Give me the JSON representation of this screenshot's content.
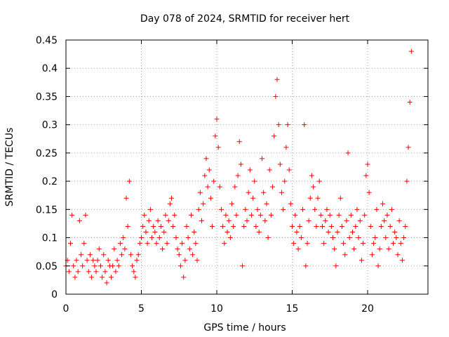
{
  "chart_data": {
    "type": "scatter",
    "title": "Day 078 of 2024, SRMTID for receiver hert",
    "xlabel": "GPS time / hours",
    "ylabel": "SRMTID / TECUs",
    "xlim": [
      0,
      24
    ],
    "ylim": [
      0,
      0.45
    ],
    "xticks": [
      0,
      5,
      10,
      15,
      20
    ],
    "xtick_labels": [
      "0",
      "5",
      "10",
      "15",
      "20"
    ],
    "yticks": [
      0,
      0.05,
      0.1,
      0.15,
      0.2,
      0.25,
      0.3,
      0.35,
      0.4,
      0.45
    ],
    "ytick_labels": [
      "0",
      "0.05",
      "0.1",
      "0.15",
      "0.2",
      "0.25",
      "0.3",
      "0.35",
      "0.4",
      "0.45"
    ],
    "grid": true,
    "marker": "+",
    "color": "#ff0000",
    "series": [
      {
        "name": "SRMTID",
        "points": [
          [
            0.0,
            0.05
          ],
          [
            0.1,
            0.06
          ],
          [
            0.2,
            0.04
          ],
          [
            0.3,
            0.09
          ],
          [
            0.4,
            0.14
          ],
          [
            0.5,
            0.05
          ],
          [
            0.6,
            0.03
          ],
          [
            0.7,
            0.06
          ],
          [
            0.8,
            0.04
          ],
          [
            0.9,
            0.13
          ],
          [
            1.0,
            0.07
          ],
          [
            1.1,
            0.05
          ],
          [
            1.2,
            0.09
          ],
          [
            1.3,
            0.14
          ],
          [
            1.4,
            0.06
          ],
          [
            1.5,
            0.04
          ],
          [
            1.6,
            0.07
          ],
          [
            1.7,
            0.03
          ],
          [
            1.8,
            0.06
          ],
          [
            1.9,
            0.05
          ],
          [
            2.0,
            0.04
          ],
          [
            2.1,
            0.06
          ],
          [
            2.2,
            0.08
          ],
          [
            2.3,
            0.05
          ],
          [
            2.4,
            0.03
          ],
          [
            2.5,
            0.07
          ],
          [
            2.6,
            0.04
          ],
          [
            2.7,
            0.02
          ],
          [
            2.8,
            0.06
          ],
          [
            2.9,
            0.05
          ],
          [
            3.0,
            0.03
          ],
          [
            3.1,
            0.05
          ],
          [
            3.2,
            0.08
          ],
          [
            3.3,
            0.04
          ],
          [
            3.4,
            0.06
          ],
          [
            3.5,
            0.05
          ],
          [
            3.6,
            0.09
          ],
          [
            3.7,
            0.07
          ],
          [
            3.8,
            0.1
          ],
          [
            3.9,
            0.08
          ],
          [
            4.0,
            0.17
          ],
          [
            4.1,
            0.12
          ],
          [
            4.2,
            0.2
          ],
          [
            4.3,
            0.07
          ],
          [
            4.4,
            0.05
          ],
          [
            4.5,
            0.04
          ],
          [
            4.6,
            0.03
          ],
          [
            4.7,
            0.06
          ],
          [
            4.8,
            0.07
          ],
          [
            4.9,
            0.09
          ],
          [
            5.0,
            0.1
          ],
          [
            5.1,
            0.12
          ],
          [
            5.2,
            0.14
          ],
          [
            5.3,
            0.11
          ],
          [
            5.4,
            0.09
          ],
          [
            5.5,
            0.13
          ],
          [
            5.6,
            0.15
          ],
          [
            5.7,
            0.1
          ],
          [
            5.8,
            0.12
          ],
          [
            5.9,
            0.11
          ],
          [
            6.0,
            0.09
          ],
          [
            6.1,
            0.13
          ],
          [
            6.2,
            0.1
          ],
          [
            6.3,
            0.12
          ],
          [
            6.4,
            0.08
          ],
          [
            6.5,
            0.11
          ],
          [
            6.6,
            0.14
          ],
          [
            6.7,
            0.09
          ],
          [
            6.8,
            0.13
          ],
          [
            6.9,
            0.16
          ],
          [
            7.0,
            0.17
          ],
          [
            7.1,
            0.12
          ],
          [
            7.2,
            0.14
          ],
          [
            7.3,
            0.1
          ],
          [
            7.4,
            0.08
          ],
          [
            7.5,
            0.07
          ],
          [
            7.6,
            0.05
          ],
          [
            7.7,
            0.09
          ],
          [
            7.8,
            0.03
          ],
          [
            7.9,
            0.06
          ],
          [
            8.0,
            0.12
          ],
          [
            8.1,
            0.1
          ],
          [
            8.2,
            0.08
          ],
          [
            8.3,
            0.14
          ],
          [
            8.4,
            0.07
          ],
          [
            8.5,
            0.11
          ],
          [
            8.6,
            0.09
          ],
          [
            8.7,
            0.06
          ],
          [
            8.8,
            0.15
          ],
          [
            8.9,
            0.18
          ],
          [
            9.0,
            0.13
          ],
          [
            9.1,
            0.16
          ],
          [
            9.2,
            0.21
          ],
          [
            9.3,
            0.24
          ],
          [
            9.4,
            0.19
          ],
          [
            9.5,
            0.22
          ],
          [
            9.6,
            0.17
          ],
          [
            9.7,
            0.12
          ],
          [
            9.8,
            0.2
          ],
          [
            9.9,
            0.28
          ],
          [
            10.0,
            0.31
          ],
          [
            10.1,
            0.26
          ],
          [
            10.2,
            0.19
          ],
          [
            10.3,
            0.15
          ],
          [
            10.4,
            0.12
          ],
          [
            10.5,
            0.09
          ],
          [
            10.6,
            0.14
          ],
          [
            10.7,
            0.11
          ],
          [
            10.8,
            0.13
          ],
          [
            10.9,
            0.1
          ],
          [
            11.0,
            0.16
          ],
          [
            11.1,
            0.12
          ],
          [
            11.2,
            0.19
          ],
          [
            11.3,
            0.14
          ],
          [
            11.4,
            0.21
          ],
          [
            11.5,
            0.27
          ],
          [
            11.6,
            0.23
          ],
          [
            11.7,
            0.05
          ],
          [
            11.8,
            0.12
          ],
          [
            11.9,
            0.15
          ],
          [
            12.0,
            0.13
          ],
          [
            12.1,
            0.18
          ],
          [
            12.2,
            0.22
          ],
          [
            12.3,
            0.14
          ],
          [
            12.4,
            0.17
          ],
          [
            12.5,
            0.2
          ],
          [
            12.6,
            0.12
          ],
          [
            12.7,
            0.15
          ],
          [
            12.8,
            0.11
          ],
          [
            12.9,
            0.14
          ],
          [
            13.0,
            0.24
          ],
          [
            13.1,
            0.18
          ],
          [
            13.2,
            0.13
          ],
          [
            13.3,
            0.16
          ],
          [
            13.4,
            0.1
          ],
          [
            13.5,
            0.22
          ],
          [
            13.6,
            0.14
          ],
          [
            13.7,
            0.19
          ],
          [
            13.8,
            0.28
          ],
          [
            13.9,
            0.35
          ],
          [
            14.0,
            0.38
          ],
          [
            14.1,
            0.3
          ],
          [
            14.2,
            0.23
          ],
          [
            14.3,
            0.18
          ],
          [
            14.4,
            0.15
          ],
          [
            14.5,
            0.2
          ],
          [
            14.6,
            0.26
          ],
          [
            14.7,
            0.3
          ],
          [
            14.8,
            0.22
          ],
          [
            14.9,
            0.16
          ],
          [
            15.0,
            0.12
          ],
          [
            15.1,
            0.09
          ],
          [
            15.2,
            0.14
          ],
          [
            15.3,
            0.11
          ],
          [
            15.4,
            0.08
          ],
          [
            15.5,
            0.12
          ],
          [
            15.6,
            0.1
          ],
          [
            15.7,
            0.15
          ],
          [
            15.8,
            0.3
          ],
          [
            15.9,
            0.05
          ],
          [
            16.0,
            0.09
          ],
          [
            16.1,
            0.13
          ],
          [
            16.2,
            0.17
          ],
          [
            16.3,
            0.21
          ],
          [
            16.4,
            0.19
          ],
          [
            16.5,
            0.15
          ],
          [
            16.6,
            0.12
          ],
          [
            16.7,
            0.17
          ],
          [
            16.8,
            0.2
          ],
          [
            16.9,
            0.14
          ],
          [
            17.0,
            0.12
          ],
          [
            17.1,
            0.09
          ],
          [
            17.2,
            0.13
          ],
          [
            17.3,
            0.15
          ],
          [
            17.4,
            0.11
          ],
          [
            17.5,
            0.14
          ],
          [
            17.6,
            0.12
          ],
          [
            17.7,
            0.1
          ],
          [
            17.8,
            0.08
          ],
          [
            17.9,
            0.05
          ],
          [
            18.0,
            0.11
          ],
          [
            18.1,
            0.14
          ],
          [
            18.2,
            0.17
          ],
          [
            18.3,
            0.12
          ],
          [
            18.4,
            0.09
          ],
          [
            18.5,
            0.07
          ],
          [
            18.6,
            0.13
          ],
          [
            18.7,
            0.25
          ],
          [
            18.8,
            0.1
          ],
          [
            18.9,
            0.14
          ],
          [
            19.0,
            0.11
          ],
          [
            19.1,
            0.08
          ],
          [
            19.2,
            0.12
          ],
          [
            19.3,
            0.15
          ],
          [
            19.4,
            0.1
          ],
          [
            19.5,
            0.13
          ],
          [
            19.6,
            0.06
          ],
          [
            19.7,
            0.09
          ],
          [
            19.8,
            0.14
          ],
          [
            19.9,
            0.21
          ],
          [
            20.0,
            0.23
          ],
          [
            20.1,
            0.18
          ],
          [
            20.2,
            0.12
          ],
          [
            20.3,
            0.07
          ],
          [
            20.4,
            0.09
          ],
          [
            20.5,
            0.1
          ],
          [
            20.6,
            0.15
          ],
          [
            20.7,
            0.05
          ],
          [
            20.8,
            0.08
          ],
          [
            20.9,
            0.12
          ],
          [
            21.0,
            0.16
          ],
          [
            21.1,
            0.13
          ],
          [
            21.2,
            0.1
          ],
          [
            21.3,
            0.14
          ],
          [
            21.4,
            0.08
          ],
          [
            21.5,
            0.12
          ],
          [
            21.6,
            0.15
          ],
          [
            21.7,
            0.09
          ],
          [
            21.8,
            0.11
          ],
          [
            21.9,
            0.1
          ],
          [
            22.0,
            0.07
          ],
          [
            22.1,
            0.13
          ],
          [
            22.2,
            0.09
          ],
          [
            22.3,
            0.06
          ],
          [
            22.4,
            0.1
          ],
          [
            22.5,
            0.12
          ],
          [
            22.6,
            0.2
          ],
          [
            22.7,
            0.26
          ],
          [
            22.8,
            0.34
          ],
          [
            22.9,
            0.43
          ]
        ]
      }
    ]
  }
}
